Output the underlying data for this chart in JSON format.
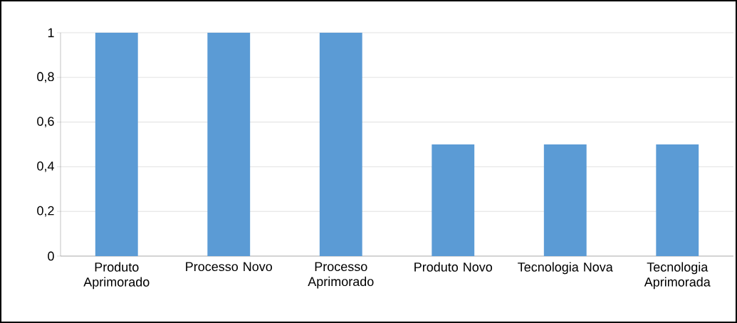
{
  "chart_data": {
    "type": "bar",
    "categories": [
      "Produto Aprimorado",
      "Processo Novo",
      "Processo Aprimorado",
      "Produto Novo",
      "Tecnologia Nova",
      "Tecnologia Aprimorada"
    ],
    "values": [
      1,
      1,
      1,
      0.5,
      0.5,
      0.5
    ],
    "color": "#5b9bd5",
    "ylim": [
      0,
      1
    ],
    "yticks": [
      0,
      {
        "value": 0.2,
        "label": "0,2"
      },
      {
        "value": 0.4,
        "label": "0,4"
      },
      {
        "value": 0.6,
        "label": "0,6"
      },
      {
        "value": 0.8,
        "label": "0,8"
      },
      1
    ],
    "grid": "y"
  }
}
